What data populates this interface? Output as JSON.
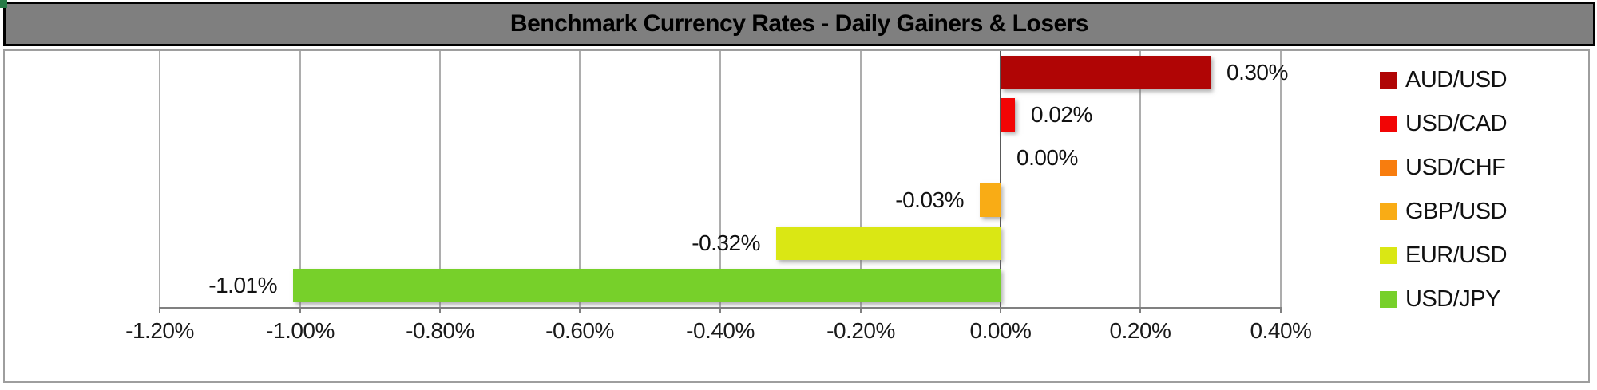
{
  "title_bar": {
    "text": "Benchmark Currency Rates - Daily Gainers & Losers"
  },
  "chart_data": {
    "type": "bar",
    "orientation": "horizontal",
    "title": "Benchmark Currency Rates - Daily Gainers & Losers",
    "categories": [
      "AUD/USD",
      "USD/CAD",
      "USD/CHF",
      "GBP/USD",
      "EUR/USD",
      "USD/JPY"
    ],
    "values": [
      0.3,
      0.02,
      0.0,
      -0.03,
      -0.32,
      -1.01
    ],
    "value_labels": [
      "0.30%",
      "0.02%",
      "0.00%",
      "-0.03%",
      "-0.32%",
      "-1.01%"
    ],
    "colors": [
      "#B00505",
      "#F20505",
      "#F87D0E",
      "#F9AC15",
      "#DAE714",
      "#77D02A"
    ],
    "xlim": [
      -1.2,
      0.4
    ],
    "x_tick_values": [
      -1.2,
      -1.0,
      -0.8,
      -0.6,
      -0.4,
      -0.2,
      0.0,
      0.2,
      0.4
    ],
    "x_tick_labels": [
      "-1.20%",
      "-1.00%",
      "-0.80%",
      "-0.60%",
      "-0.40%",
      "-0.20%",
      "0.00%",
      "0.20%",
      "0.40%"
    ],
    "grid": true,
    "legend_position": "right",
    "legend_labels": [
      "AUD/USD",
      "USD/CAD",
      "USD/CHF",
      "GBP/USD",
      "EUR/USD",
      "USD/JPY"
    ]
  },
  "styles": {
    "title_bg": "#7F7F7F",
    "title_text": "#000000",
    "grid_color": "#ADADAD",
    "zero_line_color": "#595959",
    "axis_color": "#808080",
    "chart_border": "#9E9E9E",
    "corner_marker_color": "#267A46",
    "background": "#FFFFFF"
  }
}
